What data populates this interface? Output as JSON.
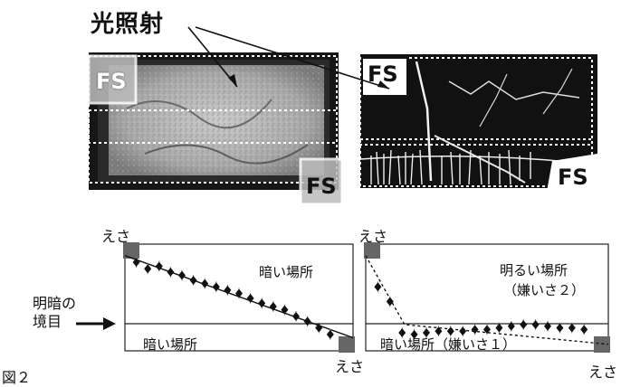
{
  "figure": {
    "title": "光照射",
    "caption": "図２",
    "boundary_label_line1": "明暗の",
    "boundary_label_line2": "境目",
    "fs_label": "FS",
    "feed_label": "えさ"
  },
  "photos": {
    "left": {
      "fs_top": "FS",
      "fs_bottom": "FS"
    },
    "right": {
      "fs_top": "FS",
      "fs_bottom": "FS"
    }
  },
  "chart_data": [
    {
      "type": "scatter",
      "title": "",
      "xlabel": "",
      "ylabel": "",
      "feed_start": "えさ",
      "feed_end": "えさ",
      "upper_region": "暗い場所",
      "lower_region": "暗い場所",
      "x": [
        1,
        2,
        3,
        4,
        5,
        6,
        7,
        8,
        9,
        10,
        11,
        12,
        13,
        14,
        15,
        16,
        17,
        18
      ],
      "y": [
        0.78,
        0.7,
        0.73,
        0.66,
        0.62,
        0.56,
        0.52,
        0.48,
        0.44,
        0.4,
        0.34,
        0.28,
        0.24,
        0.2,
        0.12,
        0.06,
        -0.02,
        -0.1
      ],
      "fit_line": [
        [
          0,
          0.86
        ],
        [
          20,
          -0.14
        ]
      ],
      "colors": {
        "marker": "#111111",
        "feed": "#666666"
      }
    },
    {
      "type": "scatter",
      "title": "",
      "xlabel": "",
      "ylabel": "",
      "feed_start": "えさ",
      "feed_end": "えさ",
      "upper_region": "明るい場所",
      "upper_region_2": "（嫌いさ２）",
      "lower_region": "暗い場所（嫌いさ１）",
      "x": [
        1,
        2,
        3,
        4,
        5,
        6,
        7,
        8,
        9,
        10,
        11,
        12,
        13,
        14,
        15,
        16,
        17,
        18
      ],
      "y": [
        0.48,
        0.3,
        -0.08,
        -0.1,
        -0.08,
        -0.06,
        -0.06,
        -0.06,
        -0.04,
        -0.04,
        -0.02,
        0.0,
        0.02,
        0.02,
        0.0,
        -0.02,
        -0.02,
        -0.04
      ],
      "fit_line": [
        [
          0,
          0.86
        ],
        [
          3.2,
          0.02
        ],
        [
          20,
          -0.22
        ]
      ],
      "colors": {
        "marker": "#111111",
        "feed": "#666666"
      }
    }
  ]
}
